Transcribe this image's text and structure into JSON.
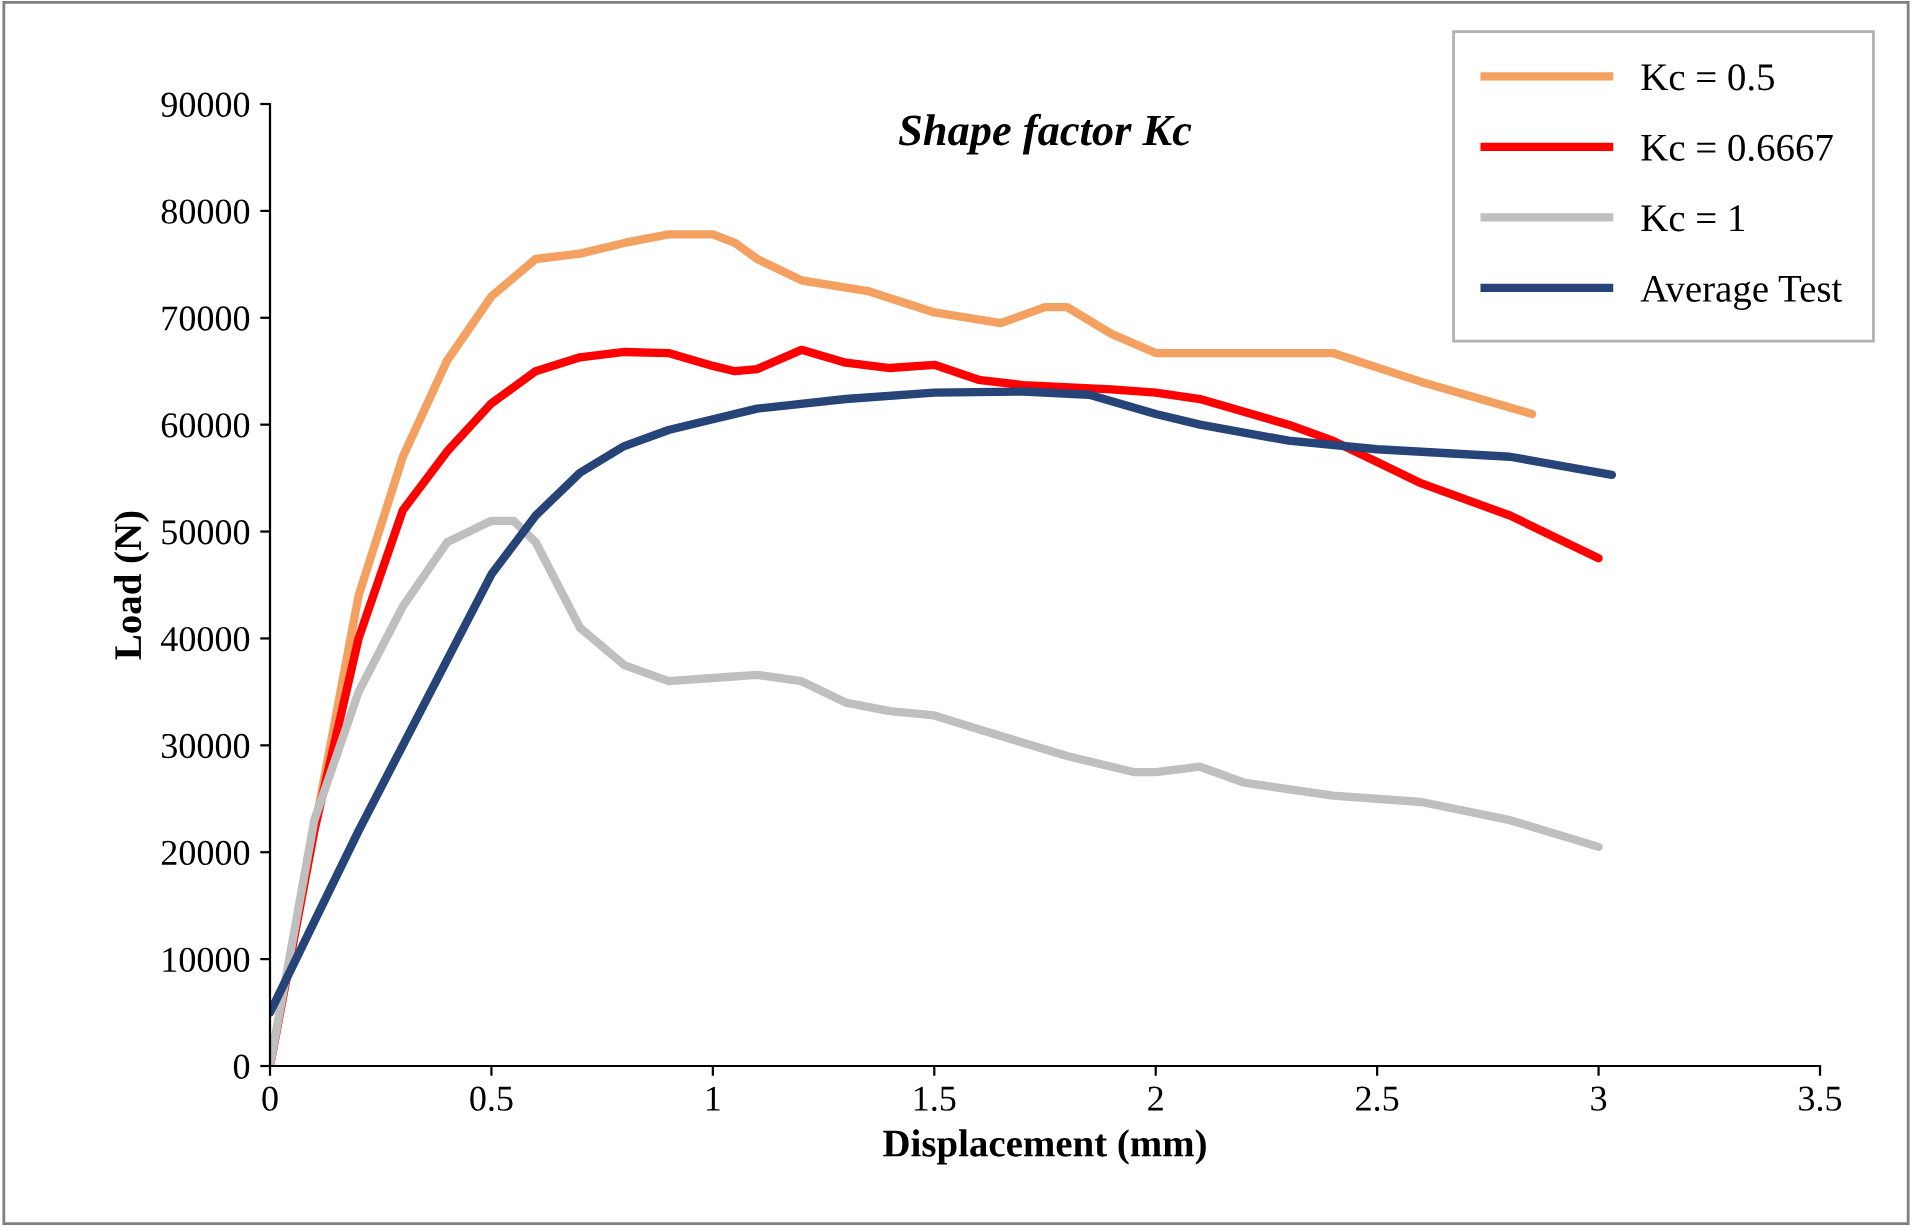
{
  "chart_data": {
    "type": "line",
    "title": "Shape factor Kc",
    "xlabel": "Displacement (mm)",
    "ylabel": "Load (N)",
    "xlim": [
      0,
      3.5
    ],
    "xticks": [
      0,
      0.5,
      1,
      1.5,
      2,
      2.5,
      3,
      3.5
    ],
    "ylim": [
      0,
      90000
    ],
    "yticks": [
      0,
      10000,
      20000,
      30000,
      40000,
      50000,
      60000,
      70000,
      80000,
      90000
    ],
    "grid": false,
    "legend": "top right",
    "marker": "none",
    "line_style": "solid",
    "series": [
      {
        "name": "Kc = 0.5",
        "color": "#f4a060",
        "x": [
          0,
          0.1,
          0.2,
          0.3,
          0.4,
          0.5,
          0.6,
          0.7,
          0.8,
          0.9,
          1.0,
          1.05,
          1.1,
          1.2,
          1.35,
          1.5,
          1.65,
          1.75,
          1.8,
          1.9,
          2.0,
          2.2,
          2.4,
          2.6,
          2.85
        ],
        "values": [
          0,
          22000,
          44000,
          57000,
          66000,
          72000,
          75500,
          76000,
          77000,
          77800,
          77800,
          77000,
          75500,
          73500,
          72500,
          70500,
          69500,
          71000,
          71000,
          68500,
          66700,
          66700,
          66700,
          64000,
          61000
        ]
      },
      {
        "name": "Kc = 0.6667",
        "color": "#ff0000",
        "x": [
          0,
          0.1,
          0.2,
          0.3,
          0.4,
          0.5,
          0.6,
          0.7,
          0.8,
          0.9,
          1.0,
          1.05,
          1.1,
          1.2,
          1.3,
          1.4,
          1.5,
          1.6,
          1.7,
          1.9,
          2.0,
          2.1,
          2.3,
          2.4,
          2.5,
          2.6,
          2.8,
          3.0
        ],
        "values": [
          0,
          22000,
          40000,
          52000,
          57500,
          62000,
          65000,
          66300,
          66800,
          66700,
          65500,
          65000,
          65200,
          67000,
          65800,
          65300,
          65600,
          64200,
          63700,
          63300,
          63000,
          62400,
          60000,
          58500,
          56500,
          54500,
          51500,
          47500
        ]
      },
      {
        "name": "Kc = 1",
        "color": "#bfbfbf",
        "x": [
          0,
          0.1,
          0.2,
          0.3,
          0.4,
          0.5,
          0.55,
          0.6,
          0.7,
          0.8,
          0.9,
          1.0,
          1.1,
          1.2,
          1.3,
          1.4,
          1.5,
          1.6,
          1.8,
          1.95,
          2.0,
          2.1,
          2.2,
          2.4,
          2.6,
          2.8,
          3.0
        ],
        "values": [
          0,
          23000,
          35000,
          43000,
          49000,
          51000,
          51000,
          49000,
          41000,
          37500,
          36000,
          36300,
          36600,
          36000,
          34000,
          33200,
          32800,
          31500,
          29000,
          27500,
          27500,
          28000,
          26500,
          25300,
          24700,
          23000,
          20500
        ]
      },
      {
        "name": "Average Test",
        "color": "#264478",
        "x": [
          0,
          0.1,
          0.2,
          0.3,
          0.4,
          0.5,
          0.6,
          0.7,
          0.8,
          0.9,
          1.0,
          1.1,
          1.3,
          1.5,
          1.7,
          1.85,
          2.0,
          2.1,
          2.3,
          2.5,
          2.8,
          3.03
        ],
        "values": [
          5000,
          13500,
          22000,
          30000,
          38000,
          46000,
          51500,
          55500,
          58000,
          59500,
          60500,
          61500,
          62400,
          63000,
          63100,
          62800,
          61000,
          60000,
          58500,
          57700,
          57000,
          55300
        ]
      }
    ]
  }
}
